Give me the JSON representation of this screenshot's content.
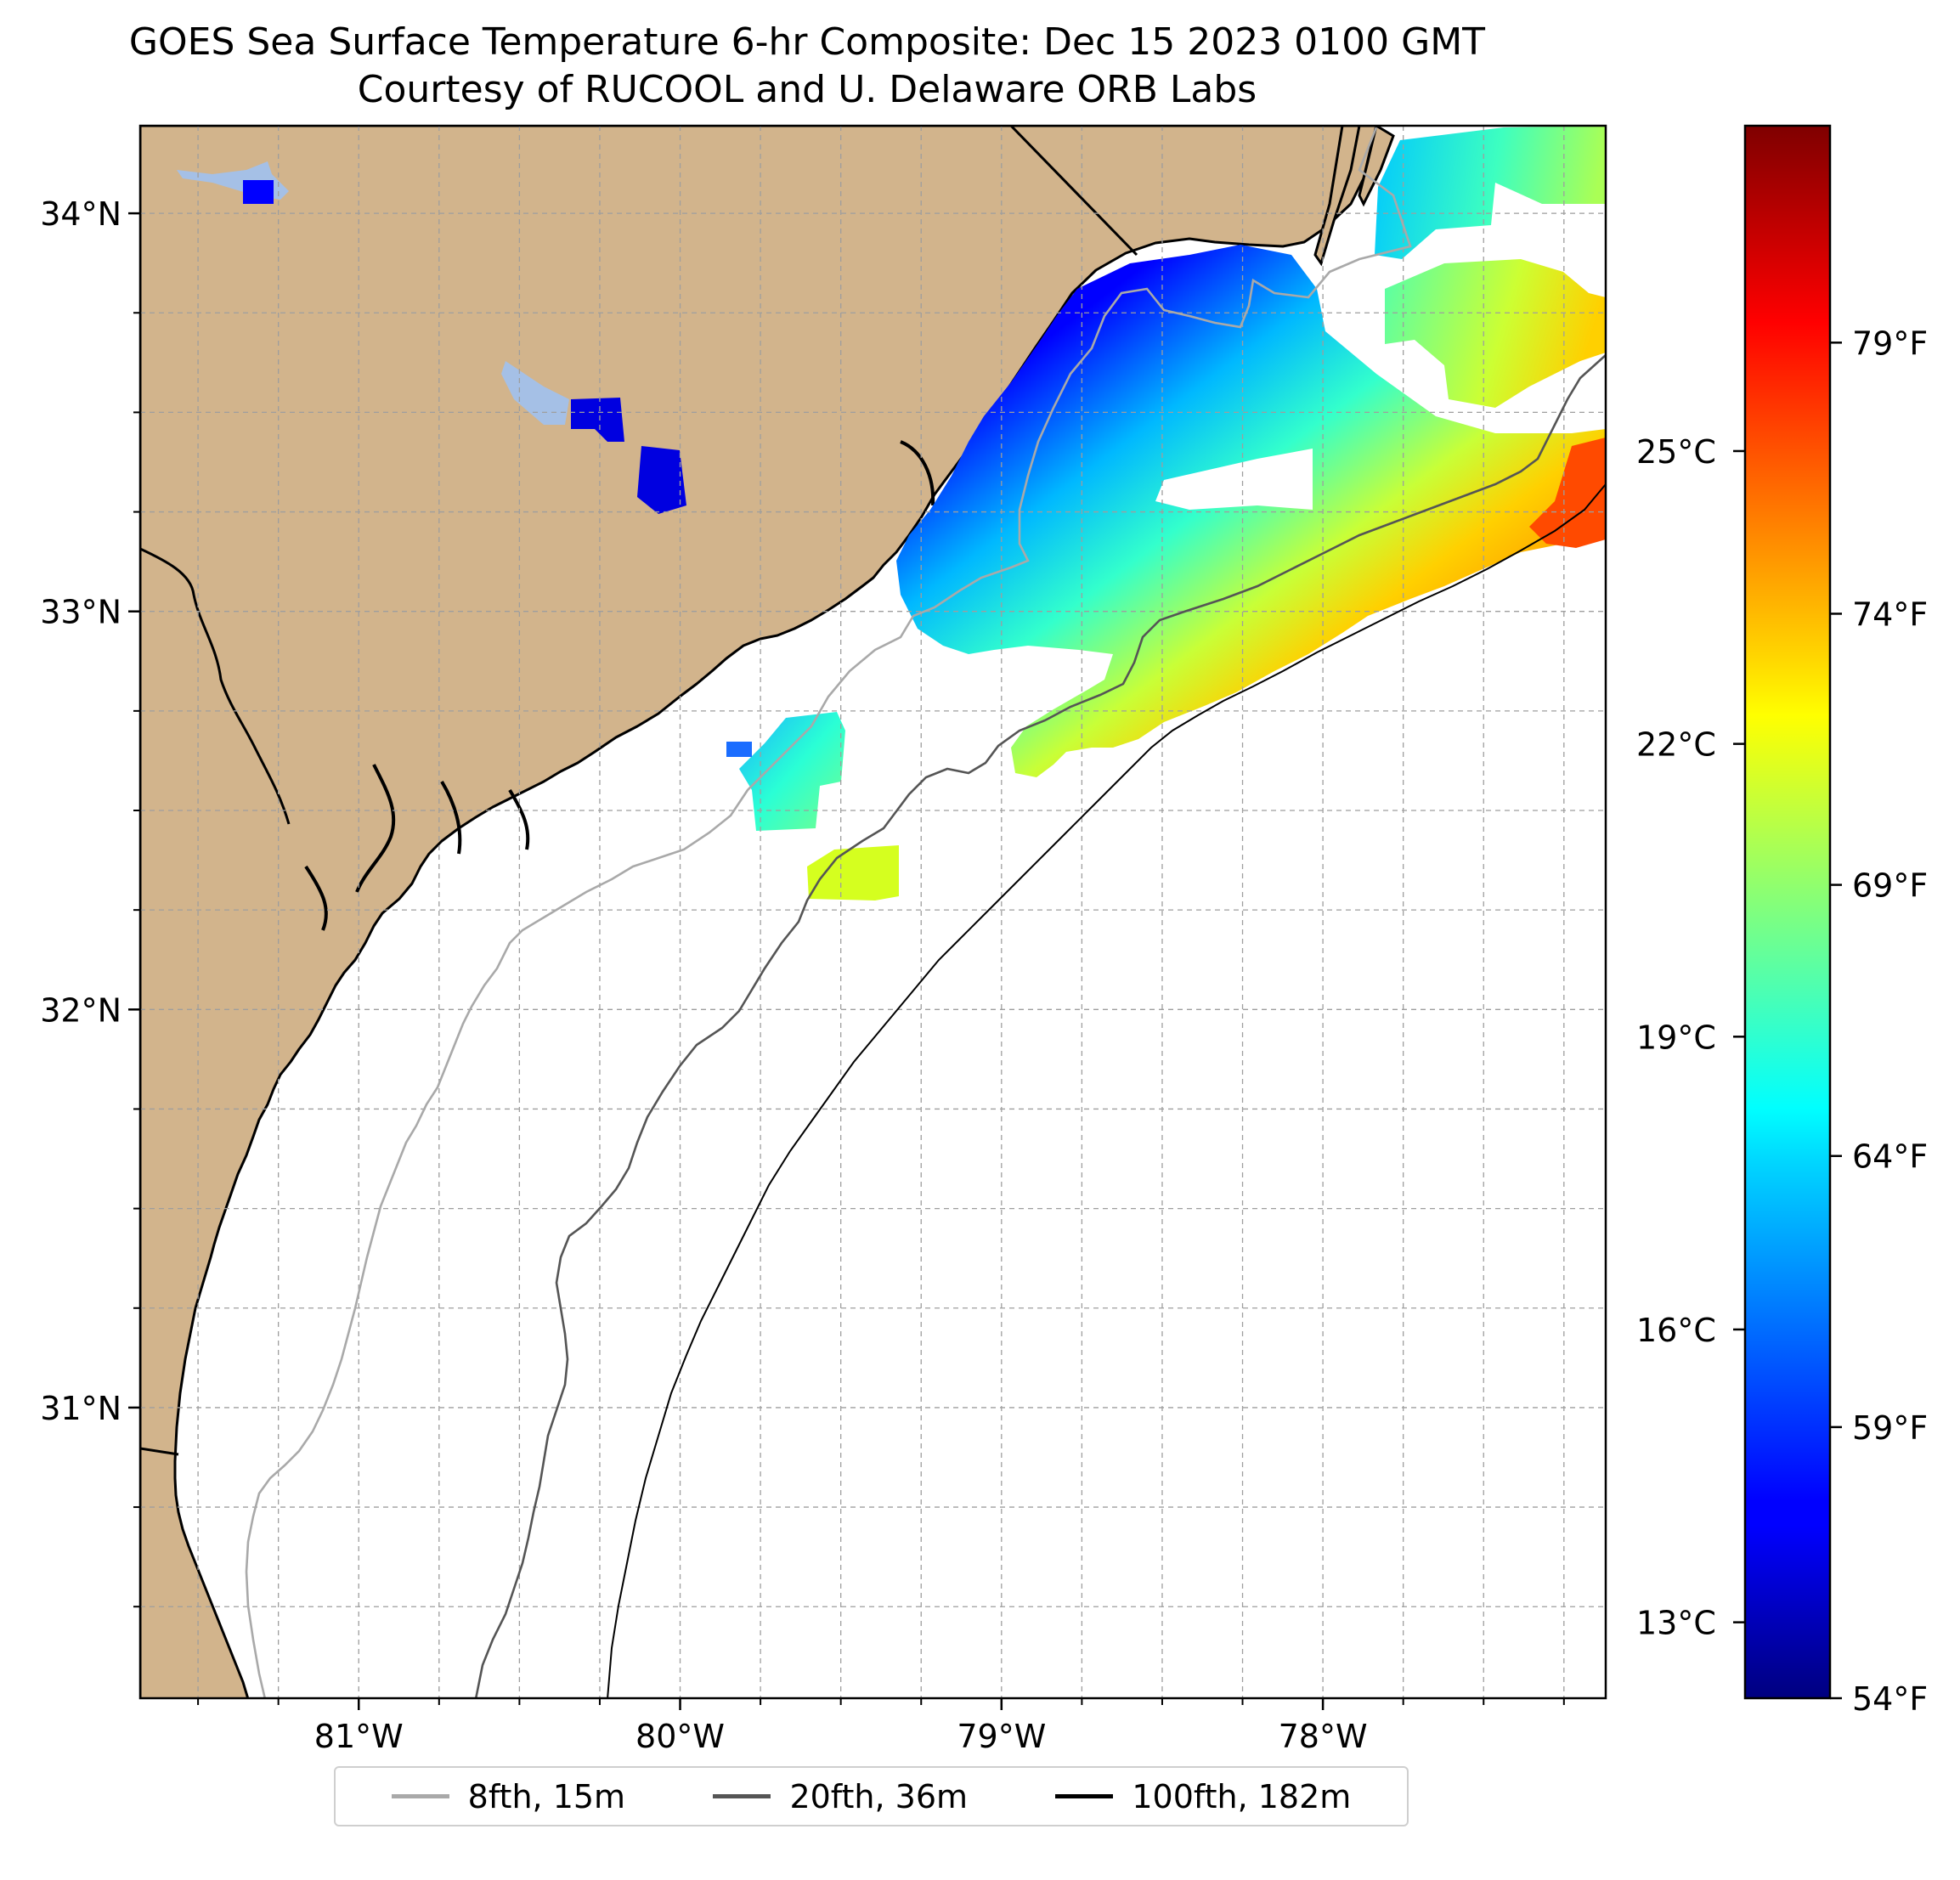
{
  "title": {
    "line1": "GOES Sea Surface Temperature 6-hr Composite: Dec 15 2023 0100 GMT",
    "line2": "Courtesy of RUCOOL and U. Delaware ORB Labs"
  },
  "map": {
    "extent": {
      "lon_min": -81.68,
      "lon_max": -77.12,
      "lat_min": 30.27,
      "lat_max": 34.22
    },
    "lat_ticks": [
      {
        "value": 34,
        "label": "34°N"
      },
      {
        "value": 33,
        "label": "33°N"
      },
      {
        "value": 32,
        "label": "32°N"
      },
      {
        "value": 31,
        "label": "31°N"
      }
    ],
    "lon_ticks": [
      {
        "value": -81,
        "label": "81°W"
      },
      {
        "value": -80,
        "label": "80°W"
      },
      {
        "value": -79,
        "label": "79°W"
      },
      {
        "value": -78,
        "label": "78°W"
      }
    ],
    "gridlines": true,
    "grid_step_deg": 0.25,
    "colors": {
      "land": "#d2b48c",
      "ocean": "#ffffff",
      "lake": "#a5c0e6",
      "grid": "#9e9e9e"
    }
  },
  "isobaths": [
    {
      "label": "8fth, 15m",
      "color": "#a9a9a9"
    },
    {
      "label": "20fth, 36m",
      "color": "#555555"
    },
    {
      "label": "100fth, 182m",
      "color": "#000000"
    }
  ],
  "colorbar": {
    "colormap": "jet",
    "celsius_ticks": [
      {
        "value": 13,
        "label": "13°C"
      },
      {
        "value": 16,
        "label": "16°C"
      },
      {
        "value": 19,
        "label": "19°C"
      },
      {
        "value": 22,
        "label": "22°C"
      },
      {
        "value": 25,
        "label": "25°C"
      }
    ],
    "fahrenheit_ticks": [
      {
        "value": 54,
        "label": "54°F"
      },
      {
        "value": 59,
        "label": "59°F"
      },
      {
        "value": 64,
        "label": "64°F"
      },
      {
        "value": 69,
        "label": "69°F"
      },
      {
        "value": 74,
        "label": "74°F"
      },
      {
        "value": 79,
        "label": "79°F"
      }
    ]
  }
}
